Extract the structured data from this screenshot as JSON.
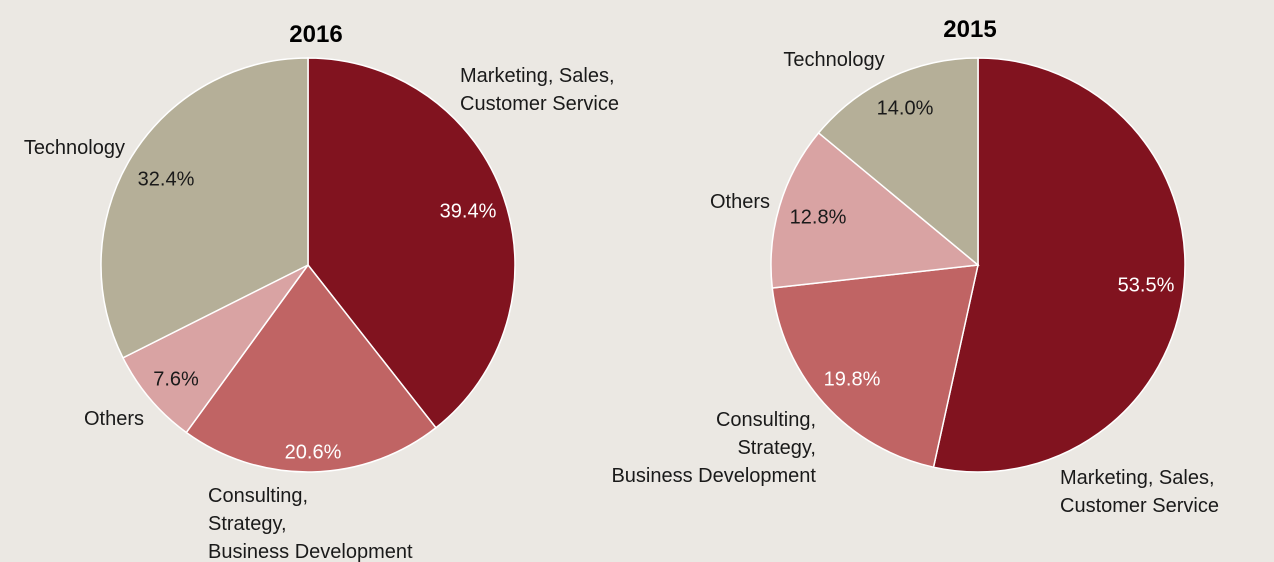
{
  "chart_data": [
    {
      "type": "pie",
      "title": "2016",
      "slices": [
        {
          "label": [
            "Marketing, Sales,",
            "Customer Service"
          ],
          "value": 39.4,
          "display": "39.4%",
          "color": "#81131f"
        },
        {
          "label": [
            "Consulting,",
            "Strategy,",
            "Business Development"
          ],
          "value": 20.6,
          "display": "20.6%",
          "color": "#c06464"
        },
        {
          "label": [
            "Others"
          ],
          "value": 7.6,
          "display": "7.6%",
          "color": "#d9a3a3"
        },
        {
          "label": [
            "Technology"
          ],
          "value": 32.4,
          "display": "32.4%",
          "color": "#b5af98"
        }
      ]
    },
    {
      "type": "pie",
      "title": "2015",
      "slices": [
        {
          "label": [
            "Marketing, Sales,",
            "Customer Service"
          ],
          "value": 53.5,
          "display": "53.5%",
          "color": "#81131f"
        },
        {
          "label": [
            "Consulting,",
            "Strategy,",
            "Business Development"
          ],
          "value": 19.8,
          "display": "19.8%",
          "color": "#c06464"
        },
        {
          "label": [
            "Others"
          ],
          "value": 12.8,
          "display": "12.8%",
          "color": "#d9a3a3"
        },
        {
          "label": [
            "Technology"
          ],
          "value": 14.0,
          "display": "14.0%",
          "color": "#b5af98"
        }
      ]
    }
  ]
}
